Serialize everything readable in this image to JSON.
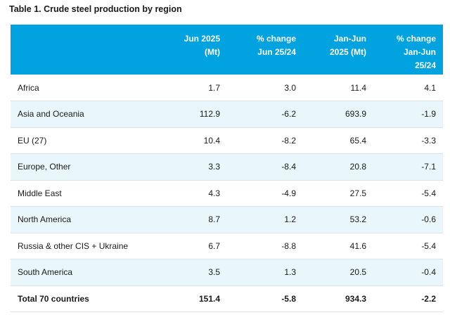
{
  "caption": "Table 1. Crude steel production by region",
  "headers": {
    "region": "",
    "jun_2025": [
      "Jun 2025",
      "(Mt)"
    ],
    "pct_jun": [
      "% change",
      "Jun 25/24"
    ],
    "janjun_2025": [
      "Jan-Jun",
      "2025 (Mt)"
    ],
    "pct_janjun": [
      "% change",
      "Jan-Jun",
      "25/24"
    ]
  },
  "rows": [
    {
      "region": "Africa",
      "jun_2025": "1.7",
      "pct_jun": "3.0",
      "janjun_2025": "11.4",
      "pct_janjun": "4.1"
    },
    {
      "region": "Asia and Oceania",
      "jun_2025": "112.9",
      "pct_jun": "-6.2",
      "janjun_2025": "693.9",
      "pct_janjun": "-1.9"
    },
    {
      "region": "EU (27)",
      "jun_2025": "10.4",
      "pct_jun": "-8.2",
      "janjun_2025": "65.4",
      "pct_janjun": "-3.3"
    },
    {
      "region": "Europe, Other",
      "jun_2025": "3.3",
      "pct_jun": "-8.4",
      "janjun_2025": "20.8",
      "pct_janjun": "-7.1"
    },
    {
      "region": "Middle East",
      "jun_2025": "4.3",
      "pct_jun": "-4.9",
      "janjun_2025": "27.5",
      "pct_janjun": "-5.4"
    },
    {
      "region": "North America",
      "jun_2025": "8.7",
      "pct_jun": "1.2",
      "janjun_2025": "53.2",
      "pct_janjun": "-0.6"
    },
    {
      "region": "Russia & other CIS + Ukraine",
      "jun_2025": "6.7",
      "pct_jun": "-8.8",
      "janjun_2025": "41.6",
      "pct_janjun": "-5.4"
    },
    {
      "region": "South America",
      "jun_2025": "3.5",
      "pct_jun": "1.3",
      "janjun_2025": "20.5",
      "pct_janjun": "-0.4"
    },
    {
      "region": "Total 70 countries",
      "jun_2025": "151.4",
      "pct_jun": "-5.8",
      "janjun_2025": "934.3",
      "pct_janjun": "-2.2"
    }
  ],
  "colors": {
    "header_bg": "#00a3e0",
    "alt_row_bg": "#e9f6fc"
  }
}
